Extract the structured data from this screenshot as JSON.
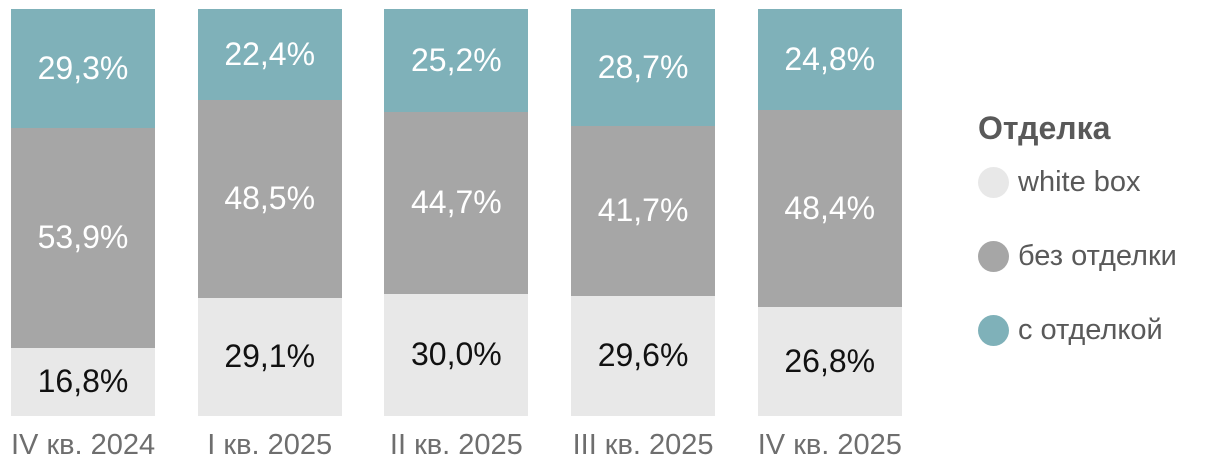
{
  "page": {
    "background": "#ffffff"
  },
  "legend": {
    "title": "Отделка",
    "position": "right",
    "items": [
      {
        "label": "white box",
        "color": "#e8e8e8"
      },
      {
        "label": "без отделки",
        "color": "#a6a6a6"
      },
      {
        "label": "с отделкой",
        "color": "#7fb1b9"
      }
    ]
  },
  "chart_data": {
    "type": "bar",
    "subtype": "stacked-100",
    "orientation": "vertical",
    "title": "",
    "xlabel": "",
    "ylabel": "",
    "ylim": [
      0,
      100
    ],
    "grid": false,
    "legend_position": "right",
    "axis_label_color": "#6e6e6e",
    "categories": [
      "IV кв. 2024",
      "I кв. 2025",
      "II кв. 2025",
      "III кв. 2025",
      "IV кв. 2025"
    ],
    "series": [
      {
        "name": "white box",
        "color": "#e8e8e8",
        "label_color": "#111111",
        "values": [
          16.8,
          29.1,
          30.0,
          29.6,
          26.8
        ],
        "labels": [
          "16,8%",
          "29,1%",
          "30,0%",
          "29,6%",
          "26,8%"
        ]
      },
      {
        "name": "без отделки",
        "color": "#a6a6a6",
        "label_color": "#ffffff",
        "values": [
          53.9,
          48.5,
          44.7,
          41.7,
          48.4
        ],
        "labels": [
          "53,9%",
          "48,5%",
          "44,7%",
          "41,7%",
          "48,4%"
        ]
      },
      {
        "name": "с отделкой",
        "color": "#7fb1b9",
        "label_color": "#ffffff",
        "values": [
          29.3,
          22.4,
          25.2,
          28.7,
          24.8
        ],
        "labels": [
          "29,3%",
          "22,4%",
          "25,2%",
          "28,7%",
          "24,8%"
        ]
      }
    ]
  }
}
